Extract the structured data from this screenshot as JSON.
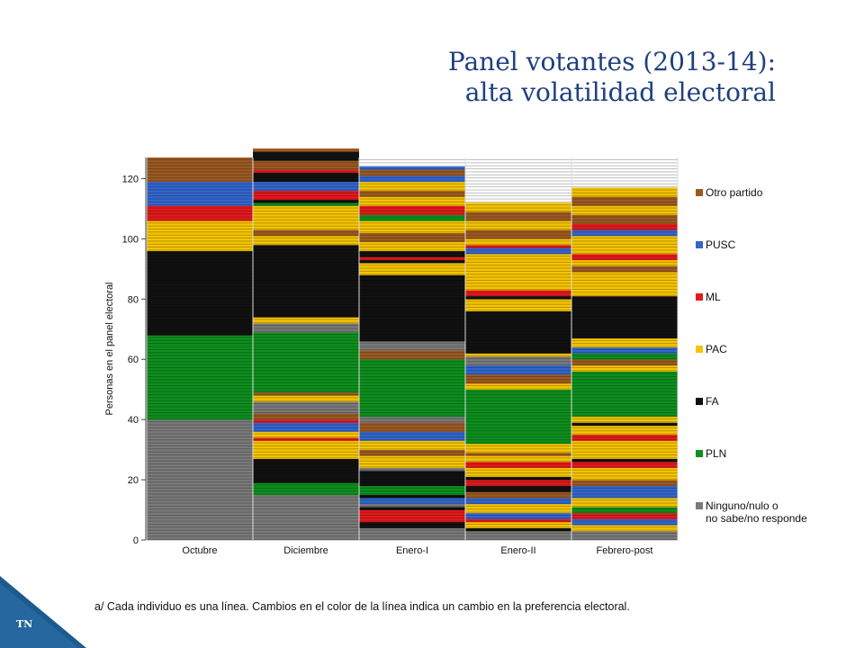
{
  "slide": {
    "title_line1": "Panel votantes (2013-14):",
    "title_line2": "alta volatilidad electoral",
    "footnote": "a/ Cada individuo es una línea. Cambios en el color de la línea indica un cambio en la preferencia electoral.",
    "corner_label": "TN",
    "accent_color": "#1e5a8f"
  },
  "chart_data": {
    "type": "heatmap",
    "ylabel": "Personas en el panel electoral",
    "ylim": [
      0,
      127
    ],
    "yticks": [
      0,
      20,
      40,
      60,
      80,
      100,
      120
    ],
    "categories": [
      "Octubre",
      "Diciembre",
      "Enero-I",
      "Enero-II",
      "Febrero-post"
    ],
    "legend_position": "right",
    "legend": [
      {
        "key": "Otro",
        "label": "Otro partido",
        "color": "#9c5a22"
      },
      {
        "key": "PUSC",
        "label": "PUSC",
        "color": "#3366cc"
      },
      {
        "key": "ML",
        "label": "ML",
        "color": "#e31a1c"
      },
      {
        "key": "PAC",
        "label": "PAC",
        "color": "#f5c400"
      },
      {
        "key": "FA",
        "label": "FA",
        "color": "#111111"
      },
      {
        "key": "PLN",
        "label": "PLN",
        "color": "#0e8f1e"
      },
      {
        "key": "Ninguno",
        "label": "Ninguno/nulo o\nno sabe/no responde",
        "color": "#7a7a7a"
      }
    ],
    "columns": [
      [
        [
          "Ninguno",
          40
        ],
        [
          "PLN",
          28
        ],
        [
          "FA",
          28
        ],
        [
          "PAC",
          10
        ],
        [
          "ML",
          5
        ],
        [
          "PUSC",
          8
        ],
        [
          "Otro",
          8
        ]
      ],
      [
        [
          "Ninguno",
          15
        ],
        [
          "PLN",
          4
        ],
        [
          "FA",
          8
        ],
        [
          "PAC",
          6
        ],
        [
          "ML",
          1
        ],
        [
          "PAC",
          2
        ],
        [
          "PUSC",
          3
        ],
        [
          "ML",
          1
        ],
        [
          "Otro",
          2
        ],
        [
          "Ninguno",
          4
        ],
        [
          "PAC",
          2
        ],
        [
          "Otro",
          1
        ],
        [
          "PLN",
          20
        ],
        [
          "Ninguno",
          3
        ],
        [
          "PAC",
          2
        ],
        [
          "FA",
          24
        ],
        [
          "PAC",
          3
        ],
        [
          "Otro",
          2
        ],
        [
          "PAC",
          8
        ],
        [
          "PLN",
          1
        ],
        [
          "FA",
          1
        ],
        [
          "ML",
          3
        ],
        [
          "PUSC",
          3
        ],
        [
          "FA",
          3
        ],
        [
          "ML",
          1
        ],
        [
          "Otro",
          3
        ],
        [
          "FA",
          3
        ],
        [
          "Otro",
          1
        ]
      ],
      [
        [
          "Ninguno",
          4
        ],
        [
          "FA",
          2
        ],
        [
          "ML",
          4
        ],
        [
          "FA",
          1
        ],
        [
          "Ninguno",
          1
        ],
        [
          "PUSC",
          2
        ],
        [
          "FA",
          1
        ],
        [
          "PLN",
          3
        ],
        [
          "FA",
          5
        ],
        [
          "Ninguno",
          1
        ],
        [
          "PAC",
          4
        ],
        [
          "Otro",
          2
        ],
        [
          "PAC",
          3
        ],
        [
          "PUSC",
          3
        ],
        [
          "Otro",
          3
        ],
        [
          "Ninguno",
          2
        ],
        [
          "PLN",
          19
        ],
        [
          "Otro",
          3
        ],
        [
          "Ninguno",
          3
        ],
        [
          "FA",
          22
        ],
        [
          "PAC",
          4
        ],
        [
          "FA",
          1
        ],
        [
          "ML",
          1
        ],
        [
          "FA",
          2
        ],
        [
          "PAC",
          3
        ],
        [
          "Otro",
          3
        ],
        [
          "PAC",
          4
        ],
        [
          "PLN",
          2
        ],
        [
          "ML",
          3
        ],
        [
          "PAC",
          3
        ],
        [
          "Otro",
          2
        ],
        [
          "PAC",
          3
        ],
        [
          "PUSC",
          2
        ],
        [
          "Otro",
          2
        ],
        [
          "PUSC",
          1
        ]
      ],
      [
        [
          "Ninguno",
          3
        ],
        [
          "FA",
          1
        ],
        [
          "PAC",
          2
        ],
        [
          "ML",
          1
        ],
        [
          "PUSC",
          2
        ],
        [
          "PAC",
          3
        ],
        [
          "PUSC",
          2
        ],
        [
          "Otro",
          2
        ],
        [
          "FA",
          2
        ],
        [
          "ML",
          2
        ],
        [
          "FA",
          1
        ],
        [
          "PAC",
          3
        ],
        [
          "ML",
          2
        ],
        [
          "PAC",
          2
        ],
        [
          "Otro",
          1
        ],
        [
          "PAC",
          3
        ],
        [
          "PLN",
          18
        ],
        [
          "PAC",
          2
        ],
        [
          "Otro",
          3
        ],
        [
          "PUSC",
          3
        ],
        [
          "Ninguno",
          3
        ],
        [
          "PAC",
          1
        ],
        [
          "FA",
          14
        ],
        [
          "PAC",
          4
        ],
        [
          "FA",
          1
        ],
        [
          "ML",
          2
        ],
        [
          "PAC",
          12
        ],
        [
          "PUSC",
          2
        ],
        [
          "ML",
          1
        ],
        [
          "PAC",
          2
        ],
        [
          "Otro",
          3
        ],
        [
          "PAC",
          3
        ],
        [
          "Otro",
          3
        ],
        [
          "PAC",
          3
        ]
      ],
      [
        [
          "Ninguno",
          3
        ],
        [
          "PAC",
          2
        ],
        [
          "PUSC",
          2
        ],
        [
          "ML",
          2
        ],
        [
          "PLN",
          2
        ],
        [
          "PAC",
          3
        ],
        [
          "PUSC",
          4
        ],
        [
          "Otro",
          2
        ],
        [
          "PAC",
          4
        ],
        [
          "ML",
          2
        ],
        [
          "FA",
          1
        ],
        [
          "PAC",
          6
        ],
        [
          "ML",
          2
        ],
        [
          "PAC",
          3
        ],
        [
          "FA",
          1
        ],
        [
          "PAC",
          2
        ],
        [
          "PLN",
          15
        ],
        [
          "PAC",
          2
        ],
        [
          "Otro",
          2
        ],
        [
          "PLN",
          2
        ],
        [
          "PUSC",
          2
        ],
        [
          "PAC",
          3
        ],
        [
          "FA",
          14
        ],
        [
          "PAC",
          8
        ],
        [
          "Otro",
          2
        ],
        [
          "PAC",
          2
        ],
        [
          "ML",
          2
        ],
        [
          "PAC",
          6
        ],
        [
          "PUSC",
          2
        ],
        [
          "ML",
          2
        ],
        [
          "Otro",
          3
        ],
        [
          "PAC",
          3
        ],
        [
          "Otro",
          3
        ],
        [
          "PAC",
          3
        ]
      ]
    ]
  }
}
